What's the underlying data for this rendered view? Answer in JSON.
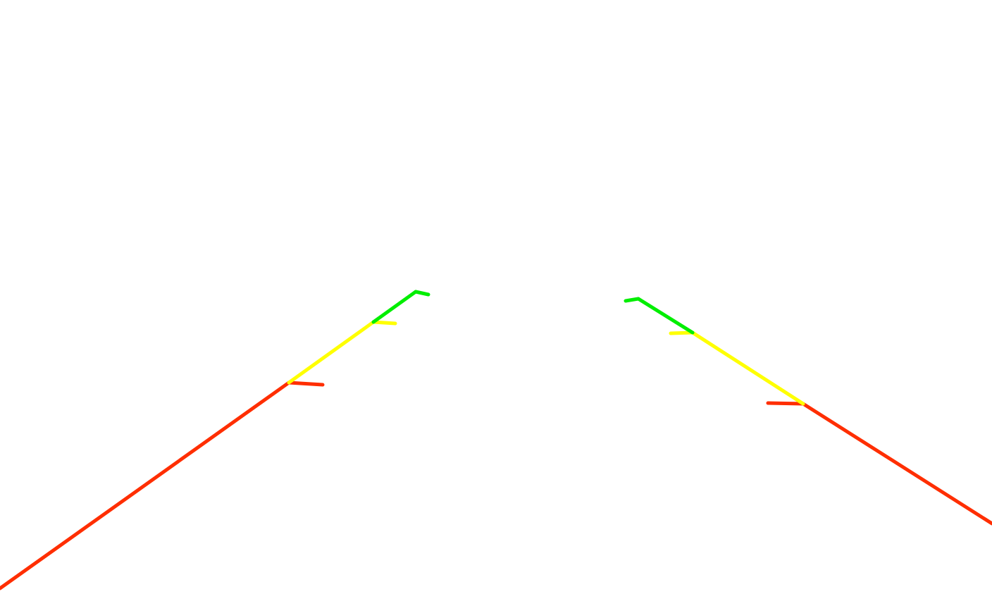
{
  "overlay": {
    "type": "parking-guide-lines",
    "colors": {
      "near": "#ff2e00",
      "mid": "#ffff00",
      "far": "#00ee00"
    },
    "zones": [
      "near",
      "mid",
      "far"
    ]
  }
}
